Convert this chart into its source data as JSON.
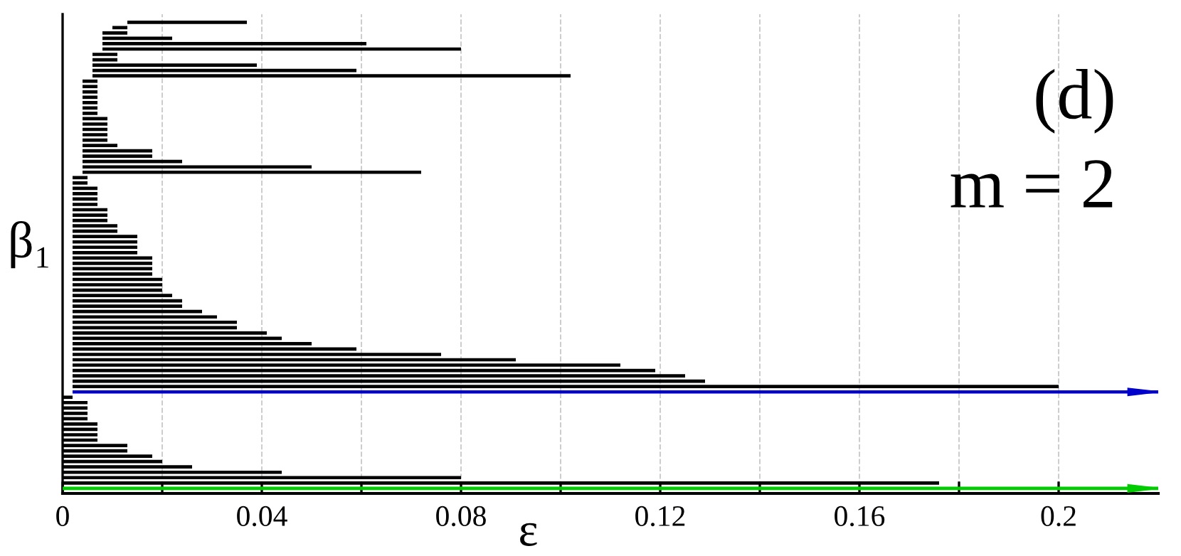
{
  "chart_data": {
    "type": "bar",
    "orientation": "horizontal",
    "xlabel": "ε",
    "ylabel": "β₁",
    "annotations": [
      "(d)",
      "m = 2"
    ],
    "categories": [
      null,
      null,
      null,
      null,
      null,
      null,
      null,
      null,
      null,
      null,
      null,
      null,
      null,
      null,
      null,
      null,
      null,
      null,
      null,
      null,
      null,
      null,
      null,
      null,
      null,
      null,
      null,
      null,
      null,
      null,
      null,
      null,
      null,
      null,
      null,
      null,
      null,
      null,
      null,
      null,
      null,
      null,
      null,
      null,
      null,
      null,
      null,
      null,
      null,
      null,
      null,
      null,
      null,
      null,
      null,
      null,
      null,
      null,
      null,
      null,
      null,
      null,
      null,
      null,
      null,
      null,
      null,
      null,
      null,
      null,
      null,
      null,
      null,
      null,
      null,
      null,
      null,
      null,
      null,
      null,
      null,
      null,
      null,
      null,
      null,
      null,
      null,
      null
    ],
    "base": [
      0.013,
      0.01,
      0.008,
      0.008,
      0.008,
      0.008,
      0.006,
      0.006,
      0.006,
      0.006,
      0.006,
      0.004,
      0.004,
      0.004,
      0.004,
      0.004,
      0.004,
      0.004,
      0.004,
      0.004,
      0.004,
      0.004,
      0.004,
      0.004,
      0.004,
      0.004,
      0.004,
      0.004,
      0.004,
      0.002,
      0.002,
      0.002,
      0.002,
      0.002,
      0.002,
      0.002,
      0.002,
      0.002,
      0.002,
      0.002,
      0.002,
      0.002,
      0.002,
      0.002,
      0.002,
      0.002,
      0.002,
      0.002,
      0.002,
      0.002,
      0.002,
      0.002,
      0.002,
      0.002,
      0.002,
      0.002,
      0.002,
      0.002,
      0.002,
      0.002,
      0.002,
      0.002,
      0.002,
      0.002,
      0.002,
      0.002,
      0.002,
      0.002,
      0.002,
      0.002,
      0,
      0,
      0,
      0,
      0,
      0,
      0,
      0,
      0,
      0,
      0,
      0,
      0,
      0,
      0,
      0,
      0,
      0
    ],
    "values": [
      0.024,
      0.003,
      0.005,
      0.014,
      0.053,
      0.072,
      0.005,
      0.005,
      0.033,
      0.053,
      0.096,
      0.003,
      0.003,
      0.003,
      0.003,
      0.003,
      0.003,
      0.003,
      0.005,
      0.005,
      0.005,
      0.005,
      0.005,
      0.007,
      0.014,
      0.014,
      0.02,
      0.046,
      0.068,
      0.003,
      0.003,
      0.005,
      0.005,
      0.005,
      0.005,
      0.007,
      0.007,
      0.007,
      0.009,
      0.009,
      0.013,
      0.013,
      0.013,
      0.013,
      0.016,
      0.016,
      0.016,
      0.016,
      0.018,
      0.018,
      0.018,
      0.02,
      0.022,
      0.022,
      0.026,
      0.029,
      0.033,
      0.033,
      0.039,
      0.042,
      0.048,
      0.057,
      0.074,
      0.089,
      0.11,
      0.117,
      0.123,
      0.127,
      0.198,
      0.218,
      0.002,
      0.005,
      0.005,
      0.005,
      0.005,
      0.007,
      0.007,
      0.007,
      0.007,
      0.013,
      0.013,
      0.018,
      0.02,
      0.026,
      0.044,
      0.08,
      0.176,
      0.22
    ],
    "colors": [
      "#000000",
      "#000000",
      "#000000",
      "#000000",
      "#000000",
      "#000000",
      "#000000",
      "#000000",
      "#000000",
      "#000000",
      "#000000",
      "#000000",
      "#000000",
      "#000000",
      "#000000",
      "#000000",
      "#000000",
      "#000000",
      "#000000",
      "#000000",
      "#000000",
      "#000000",
      "#000000",
      "#000000",
      "#000000",
      "#000000",
      "#000000",
      "#000000",
      "#000000",
      "#000000",
      "#000000",
      "#000000",
      "#000000",
      "#000000",
      "#000000",
      "#000000",
      "#000000",
      "#000000",
      "#000000",
      "#000000",
      "#000000",
      "#000000",
      "#000000",
      "#000000",
      "#000000",
      "#000000",
      "#000000",
      "#000000",
      "#000000",
      "#000000",
      "#000000",
      "#000000",
      "#000000",
      "#000000",
      "#000000",
      "#000000",
      "#000000",
      "#000000",
      "#000000",
      "#000000",
      "#000000",
      "#000000",
      "#000000",
      "#000000",
      "#000000",
      "#000000",
      "#000000",
      "#000000",
      "#000000",
      "#0000cc",
      "#000000",
      "#000000",
      "#000000",
      "#000000",
      "#000000",
      "#000000",
      "#000000",
      "#000000",
      "#000000",
      "#000000",
      "#000000",
      "#000000",
      "#000000",
      "#000000",
      "#000000",
      "#000000",
      "#000000",
      "#00cc00"
    ],
    "xlim": [
      0,
      0.22
    ],
    "xticks": [
      0,
      {
        "value": 0.02,
        "label": null
      },
      0.04,
      {
        "value": 0.06,
        "label": null
      },
      0.08,
      {
        "value": 0.1,
        "label": null
      },
      0.12,
      {
        "value": 0.14,
        "label": null
      },
      0.16,
      {
        "value": 0.18,
        "label": null
      },
      0.2
    ],
    "grid": "x",
    "legend": false
  }
}
